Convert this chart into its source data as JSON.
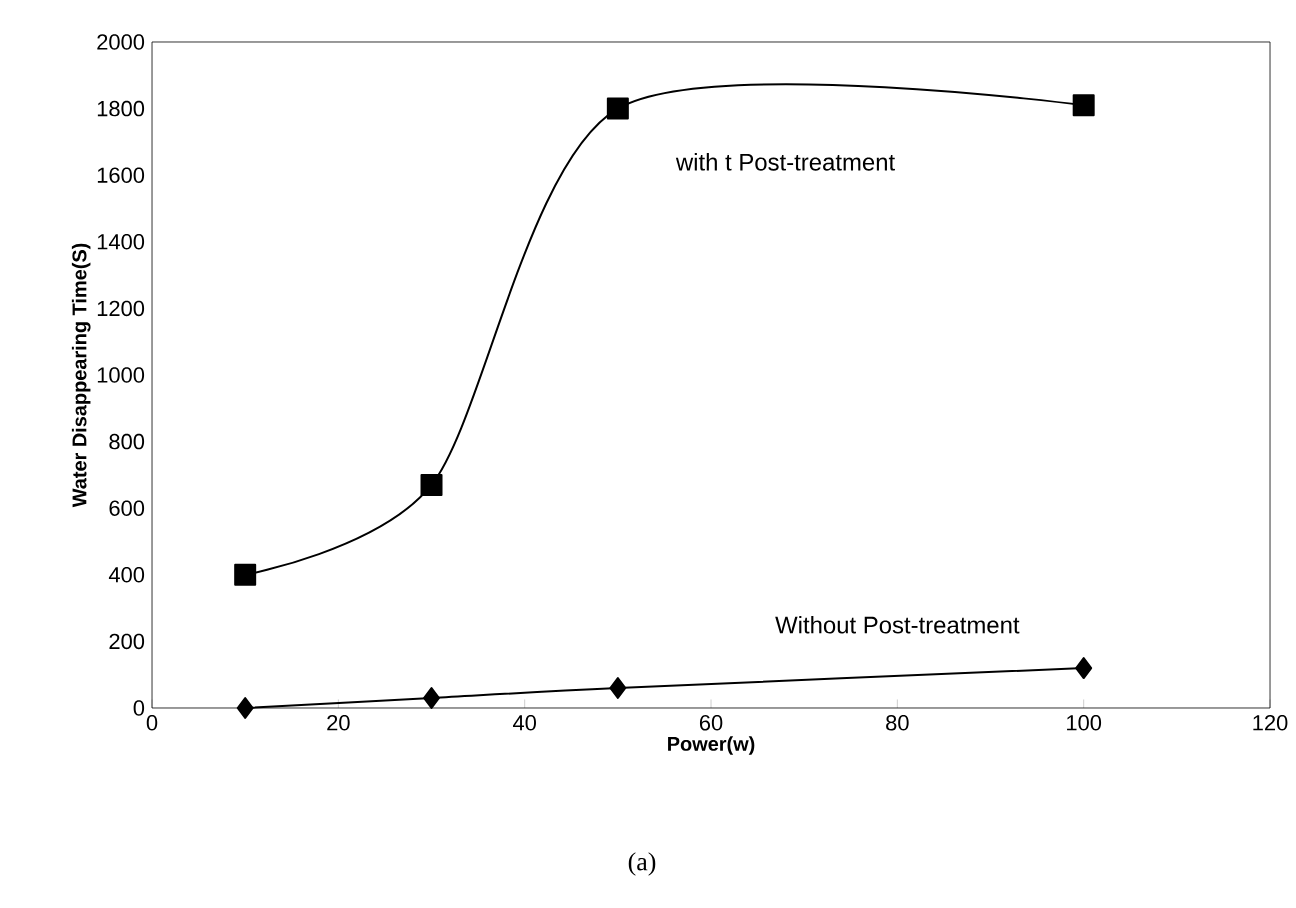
{
  "chart_data": {
    "type": "line",
    "xlabel": "Power(w)",
    "ylabel": "Water Disappearing Time(S)",
    "x": [
      10,
      30,
      50,
      100
    ],
    "series": [
      {
        "name": "with t Post-treatment",
        "color": "#000000",
        "marker": "square",
        "values": [
          400,
          670,
          1800,
          1810
        ]
      },
      {
        "name": "Without Post-treatment",
        "color": "#000000",
        "marker": "diamond",
        "values": [
          0,
          30,
          60,
          120
        ]
      }
    ],
    "xlim": [
      0,
      120
    ],
    "xticks": [
      0,
      20,
      40,
      60,
      80,
      100,
      120
    ],
    "ylim": [
      0,
      2000
    ],
    "yticks": [
      0,
      200,
      400,
      600,
      800,
      1000,
      1200,
      1400,
      1600,
      1800,
      2000
    ],
    "grid": false,
    "legend": false,
    "line_style": "solid",
    "annotations": [
      "(a)"
    ]
  }
}
